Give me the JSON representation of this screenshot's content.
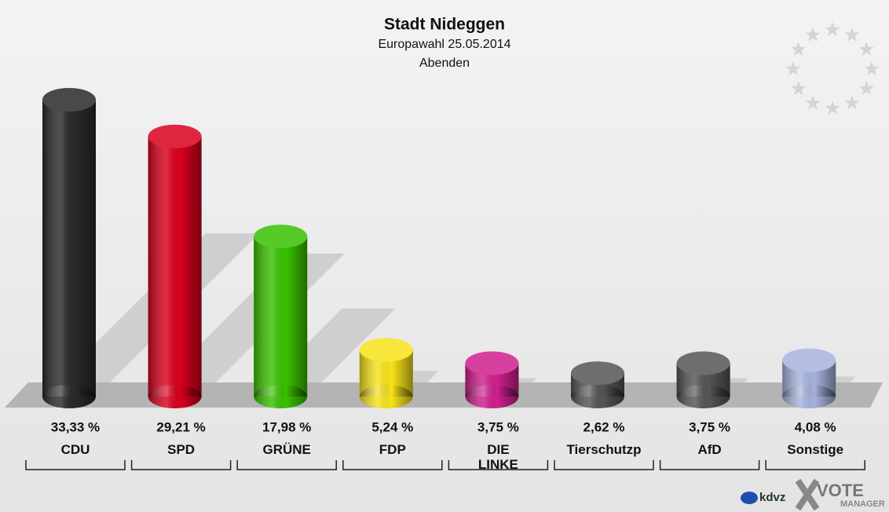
{
  "chart_data": {
    "type": "bar",
    "title": "Stadt Nideggen",
    "subtitle": "Europawahl 25.05.2014",
    "subtitle2": "Abenden",
    "categories": [
      "CDU",
      "SPD",
      "GRÜNE",
      "FDP",
      "DIE LINKE",
      "Tierschutzp",
      "AfD",
      "Sonstige"
    ],
    "values": [
      33.33,
      29.21,
      17.98,
      5.24,
      3.75,
      2.62,
      3.75,
      4.08
    ],
    "value_labels": [
      "33,33 %",
      "29,21 %",
      "17,98 %",
      "5,24 %",
      "3,75 %",
      "2,62 %",
      "3,75 %",
      "4,08 %"
    ],
    "colors": [
      "#2a2a2a",
      "#d9001e",
      "#39c100",
      "#f7e21a",
      "#cf1f8e",
      "#555555",
      "#555555",
      "#a7b3dd"
    ]
  },
  "logo": {
    "brand": "kdvz",
    "vote": "VOTE",
    "manager": "MANAGER"
  }
}
